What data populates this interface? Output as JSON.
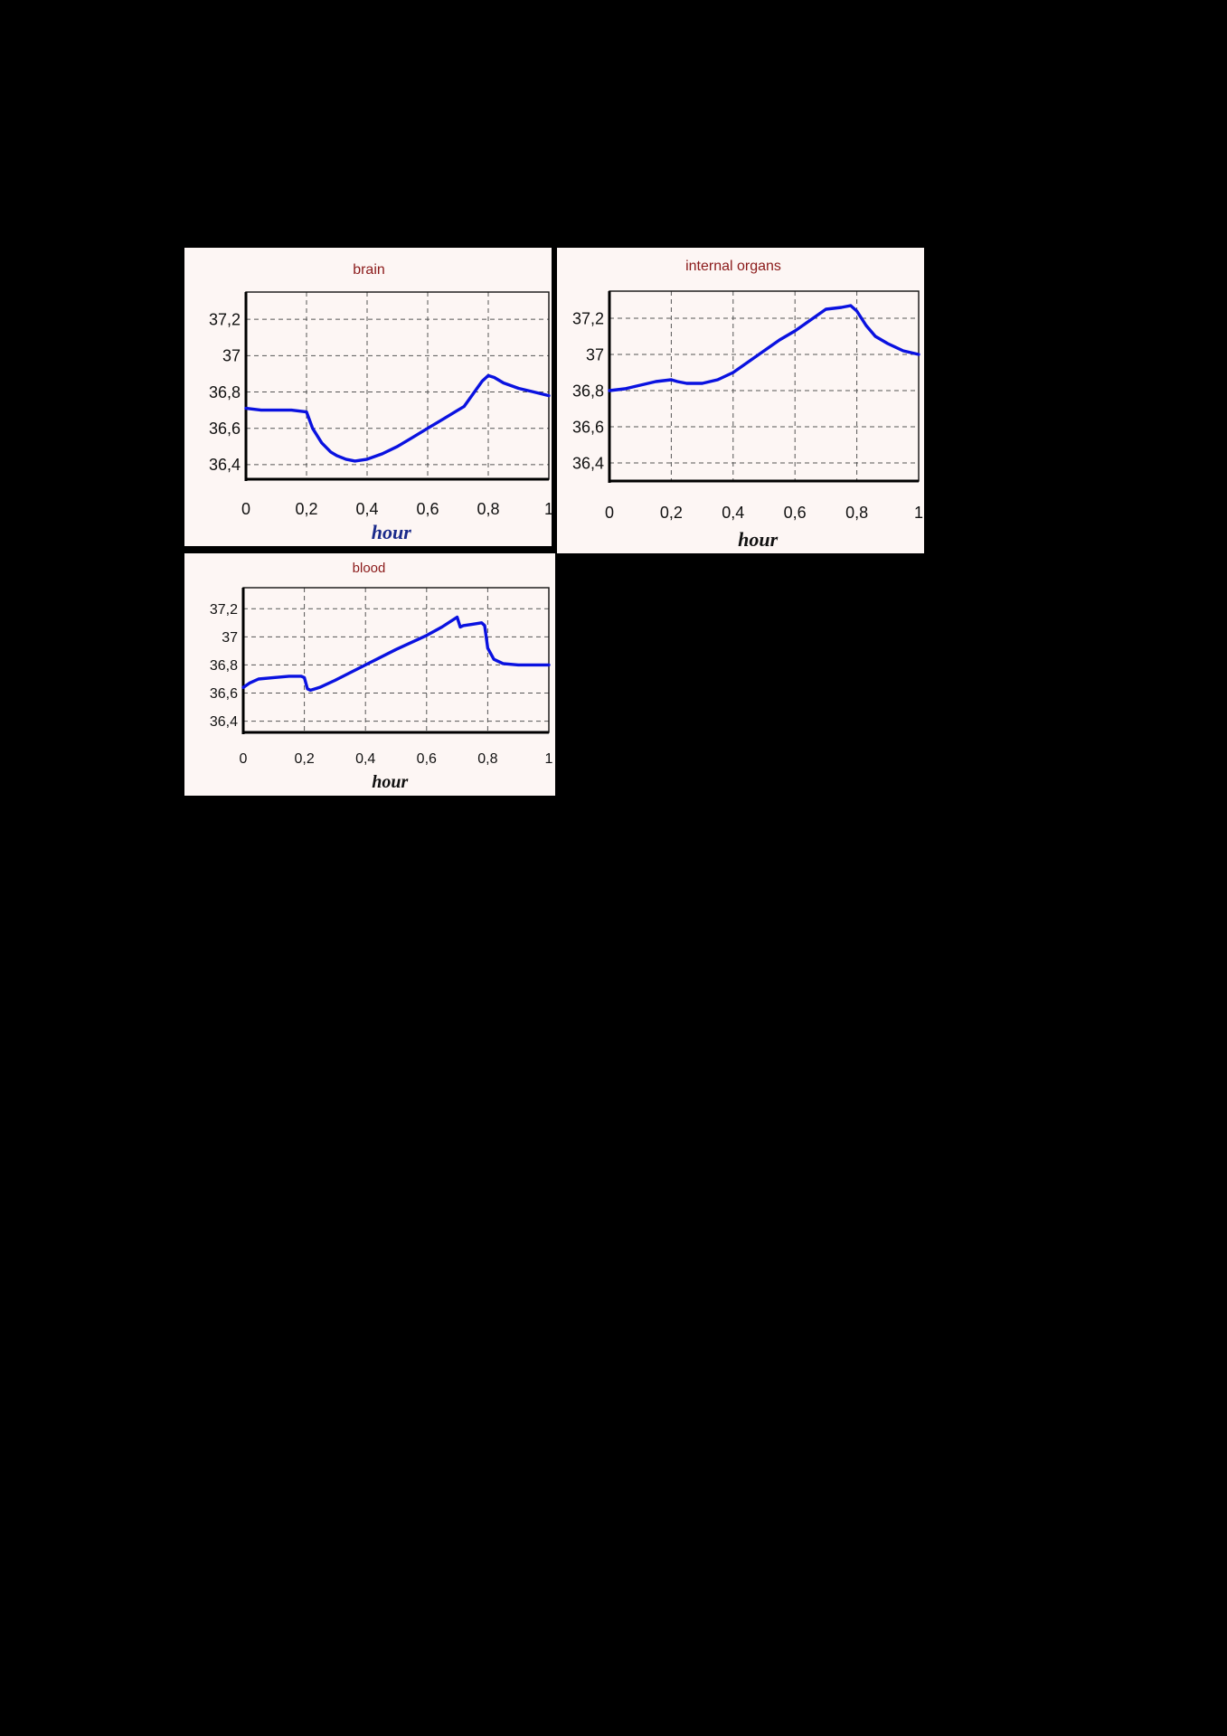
{
  "chart_data": [
    {
      "type": "line",
      "title": "brain",
      "xlabel": "hour",
      "ylabel": "",
      "xlim": [
        0,
        1
      ],
      "ylim": [
        36.32,
        37.35
      ],
      "xticks": [
        0,
        0.2,
        0.4,
        0.6,
        0.8,
        1
      ],
      "xtick_labels": [
        "0",
        "0,2",
        "0,4",
        "0,6",
        "0,8",
        "1"
      ],
      "yticks": [
        36.4,
        36.6,
        36.8,
        37,
        37.2
      ],
      "ytick_labels": [
        "36,4",
        "36,6",
        "36,8",
        "37",
        "37,2"
      ],
      "grid": true,
      "line_color": "#0a12e0",
      "x": [
        0,
        0.05,
        0.1,
        0.15,
        0.2,
        0.22,
        0.25,
        0.28,
        0.3,
        0.33,
        0.36,
        0.4,
        0.45,
        0.5,
        0.55,
        0.6,
        0.65,
        0.7,
        0.72,
        0.75,
        0.78,
        0.8,
        0.82,
        0.85,
        0.9,
        0.95,
        1
      ],
      "y": [
        36.71,
        36.7,
        36.7,
        36.7,
        36.69,
        36.6,
        36.52,
        36.47,
        36.45,
        36.43,
        36.42,
        36.43,
        36.46,
        36.5,
        36.55,
        36.6,
        36.65,
        36.7,
        36.72,
        36.79,
        36.86,
        36.89,
        36.88,
        36.85,
        36.82,
        36.8,
        36.78
      ]
    },
    {
      "type": "line",
      "title": "internal organs",
      "xlabel": "hour",
      "ylabel": "",
      "xlim": [
        0,
        1
      ],
      "ylim": [
        36.3,
        37.35
      ],
      "xticks": [
        0,
        0.2,
        0.4,
        0.6,
        0.8,
        1
      ],
      "xtick_labels": [
        "0",
        "0,2",
        "0,4",
        "0,6",
        "0,8",
        "1"
      ],
      "yticks": [
        36.4,
        36.6,
        36.8,
        37,
        37.2
      ],
      "ytick_labels": [
        "36,4",
        "36,6",
        "36,8",
        "37",
        "37,2"
      ],
      "grid": true,
      "line_color": "#0a12e0",
      "x": [
        0,
        0.05,
        0.1,
        0.15,
        0.2,
        0.22,
        0.25,
        0.3,
        0.35,
        0.4,
        0.45,
        0.5,
        0.55,
        0.6,
        0.65,
        0.7,
        0.75,
        0.78,
        0.8,
        0.83,
        0.86,
        0.9,
        0.95,
        1
      ],
      "y": [
        36.8,
        36.81,
        36.83,
        36.85,
        36.86,
        36.85,
        36.84,
        36.84,
        36.86,
        36.9,
        36.96,
        37.02,
        37.08,
        37.13,
        37.19,
        37.25,
        37.26,
        37.27,
        37.24,
        37.16,
        37.1,
        37.06,
        37.02,
        37.0
      ]
    },
    {
      "type": "line",
      "title": "blood",
      "xlabel": "hour",
      "ylabel": "",
      "xlim": [
        0,
        1
      ],
      "ylim": [
        36.32,
        37.35
      ],
      "xticks": [
        0,
        0.2,
        0.4,
        0.6,
        0.8,
        1
      ],
      "xtick_labels": [
        "0",
        "0,2",
        "0,4",
        "0,6",
        "0,8",
        "1"
      ],
      "yticks": [
        36.4,
        36.6,
        36.8,
        37,
        37.2
      ],
      "ytick_labels": [
        "36,4",
        "36,6",
        "36,8",
        "37",
        "37,2"
      ],
      "grid": true,
      "line_color": "#0a12e0",
      "x": [
        0,
        0.02,
        0.05,
        0.1,
        0.15,
        0.19,
        0.2,
        0.21,
        0.22,
        0.25,
        0.3,
        0.4,
        0.5,
        0.6,
        0.65,
        0.7,
        0.71,
        0.72,
        0.75,
        0.78,
        0.79,
        0.8,
        0.82,
        0.85,
        0.9,
        0.95,
        1
      ],
      "y": [
        36.64,
        36.67,
        36.7,
        36.71,
        36.72,
        36.72,
        36.71,
        36.63,
        36.62,
        36.64,
        36.69,
        36.8,
        36.91,
        37.01,
        37.07,
        37.14,
        37.07,
        37.08,
        37.09,
        37.1,
        37.08,
        36.92,
        36.84,
        36.81,
        36.8,
        36.8,
        36.8
      ]
    }
  ]
}
